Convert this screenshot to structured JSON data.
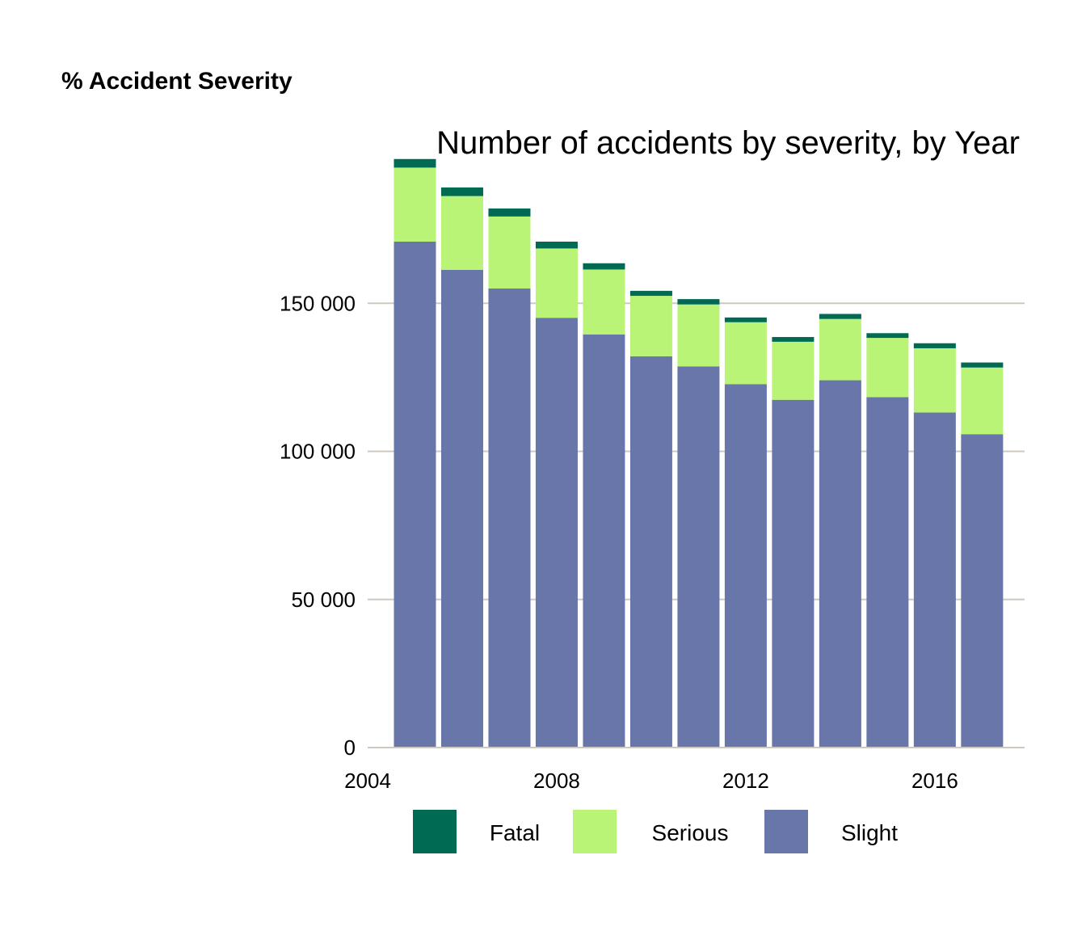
{
  "heading": "% Accident Severity",
  "chart_data": {
    "type": "bar",
    "stacked": true,
    "title": "Number of accidents by severity, by Year",
    "xlabel": "",
    "ylabel": "",
    "categories": [
      2005,
      2006,
      2007,
      2008,
      2009,
      2010,
      2011,
      2012,
      2013,
      2014,
      2015,
      2016,
      2017
    ],
    "series": [
      {
        "name": "Slight",
        "color": "#6876aa",
        "values": [
          170800,
          161300,
          155000,
          145100,
          139500,
          132100,
          128700,
          122700,
          117400,
          124000,
          118300,
          113100,
          105800
        ]
      },
      {
        "name": "Serious",
        "color": "#b9f476",
        "values": [
          25000,
          24900,
          24300,
          23400,
          21900,
          20400,
          20900,
          20900,
          19600,
          20700,
          20000,
          21700,
          22500
        ]
      },
      {
        "name": "Fatal",
        "color": "#006a52",
        "values": [
          2900,
          2900,
          2700,
          2300,
          2100,
          1700,
          1800,
          1600,
          1600,
          1700,
          1600,
          1700,
          1700
        ]
      }
    ],
    "x_ticks": [
      "2004",
      "2008",
      "2012",
      "2016"
    ],
    "y_ticks": [
      {
        "value": 0,
        "label": "0"
      },
      {
        "value": 50000,
        "label": "50 000"
      },
      {
        "value": 100000,
        "label": "100 000"
      },
      {
        "value": 150000,
        "label": "150 000"
      }
    ],
    "xlim": [
      2004,
      2017.9
    ],
    "ylim": [
      0,
      200000
    ],
    "grid": "horizontal",
    "legend": {
      "position": "bottom",
      "entries": [
        {
          "label": "Fatal",
          "color": "#006a52"
        },
        {
          "label": "Serious",
          "color": "#b9f476"
        },
        {
          "label": "Slight",
          "color": "#6876aa"
        }
      ]
    },
    "colors": {
      "grid": "#cfc8c0",
      "axis": "#cfc8c0"
    }
  }
}
